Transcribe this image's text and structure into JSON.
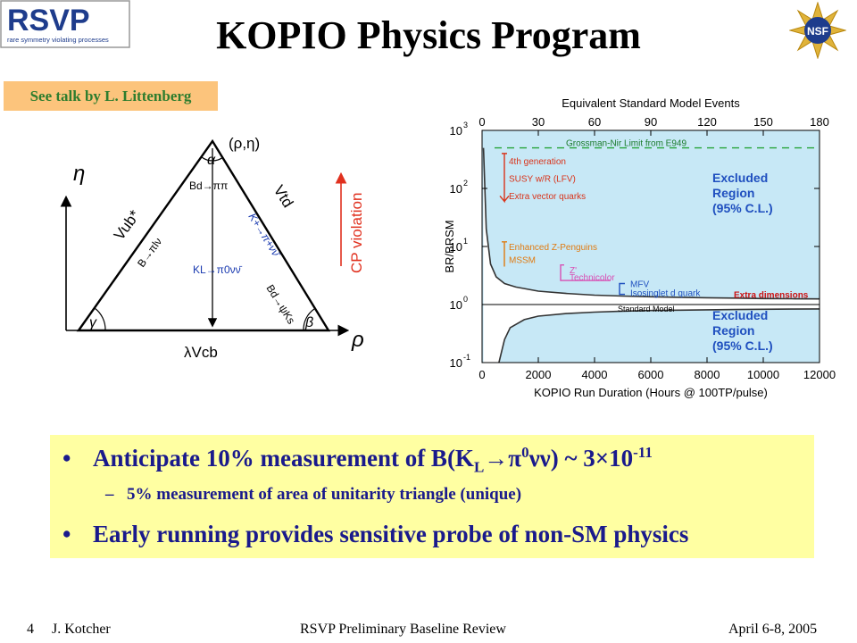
{
  "logos": {
    "rsvp_text": "RSVP",
    "rsvp_tagline": "rare symmetry violating processes",
    "nsf_text": "NSF"
  },
  "title": "KOPIO Physics Program",
  "reference": "See talk by L. Littenberg",
  "triangle": {
    "vertex_label": "(ρ,η)",
    "alpha": "α",
    "beta": "β",
    "gamma": "γ",
    "eta_axis": "η",
    "rho_axis": "ρ",
    "bd_pipi": "Bd→ππ",
    "vub": "Vub*",
    "vtd": "Vtd",
    "b_pilnu": "B→πlν",
    "k_pinunu": "K+→π+νν̄",
    "kl_pi0nunu": "KL→π0νν̄",
    "bd_psiks": "Bd→ψKs",
    "base": "λVcb",
    "cp_label": "CP violation"
  },
  "chart_data": {
    "type": "line",
    "top_axis_label": "Equivalent Standard Model Events",
    "top_ticks": [
      "0",
      "30",
      "60",
      "90",
      "120",
      "150",
      "180"
    ],
    "xlabel": "KOPIO Run Duration (Hours @ 100TP/pulse)",
    "x_ticks": [
      "0",
      "2000",
      "4000",
      "6000",
      "8000",
      "10000",
      "12000"
    ],
    "xlim": [
      0,
      12000
    ],
    "ylabel": "BR/BRSM",
    "y_ticks": [
      "10-1",
      "100",
      "101",
      "102",
      "103"
    ],
    "ylim": [
      0.1,
      1000
    ],
    "log_y": true,
    "grossman_nir": {
      "label": "Grossman-Nir Limit from E949",
      "value": 500
    },
    "standard_model": {
      "label": "Standard Model",
      "value": 1
    },
    "excluded_upper": "Excluded Region (95% C.L.)",
    "excluded_lower": "Excluded Region (95% C.L.)",
    "annotations": [
      {
        "text": "4th generation",
        "y": 300,
        "color": "#d9331a"
      },
      {
        "text": "SUSY w/R (LFV)",
        "y": 150,
        "color": "#d9331a"
      },
      {
        "text": "Extra vector quarks",
        "y": 75,
        "color": "#d9331a"
      },
      {
        "text": "Enhanced Z-Penguins",
        "y": 10,
        "color": "#e07a10"
      },
      {
        "text": "MSSM",
        "y": 6,
        "color": "#e07a10"
      },
      {
        "text": "Z'",
        "y": 4,
        "color": "#d84fb4"
      },
      {
        "text": "Technicolor",
        "y": 3,
        "color": "#d84fb4"
      },
      {
        "text": "MFV",
        "y": 2.3,
        "color": "#1f4fbf"
      },
      {
        "text": "Isosinglet d quark",
        "y": 1.6,
        "color": "#1f4fbf"
      },
      {
        "text": "Extra dimensions",
        "y": 1.5,
        "color": "#cc1111"
      }
    ],
    "upper_bound": {
      "x": [
        50,
        150,
        300,
        500,
        800,
        1200,
        2000,
        3000,
        4000,
        5000,
        6000,
        7000,
        8000,
        9000,
        10000,
        11000,
        12000
      ],
      "y": [
        500,
        20,
        5,
        3.0,
        2.3,
        2.0,
        1.7,
        1.55,
        1.45,
        1.4,
        1.36,
        1.33,
        1.31,
        1.29,
        1.27,
        1.26,
        1.25
      ]
    },
    "lower_bound": {
      "x": [
        600,
        800,
        1000,
        1500,
        2000,
        3000,
        4000,
        5000,
        6000,
        7000,
        8000,
        9000,
        10000,
        11000,
        12000
      ],
      "y": [
        0.1,
        0.25,
        0.4,
        0.55,
        0.63,
        0.7,
        0.74,
        0.77,
        0.79,
        0.8,
        0.81,
        0.82,
        0.83,
        0.835,
        0.84
      ]
    },
    "colors": {
      "region": "#c7e8f6",
      "curve": "#333333",
      "dashed": "#27a33a",
      "excluded_text": "#1f4fbf"
    }
  },
  "bullets": {
    "b1_marker": "•",
    "b1_text": "Anticipate 10% measurement of B(K",
    "b1_sub": "L",
    "b1_arrow": "→π",
    "b1_sup": "0",
    "b1_rest": "νν) ~ 3×10",
    "b1_exp": "-11",
    "b2_marker": "–",
    "b2_text": "5% measurement of area of unitarity triangle (unique)",
    "b3_marker": "•",
    "b3_text": "Early running provides sensitive probe of non-SM physics"
  },
  "footer": {
    "page": "4",
    "author": "J. Kotcher",
    "event": "RSVP Preliminary Baseline Review",
    "date": "April 6-8, 2005"
  }
}
